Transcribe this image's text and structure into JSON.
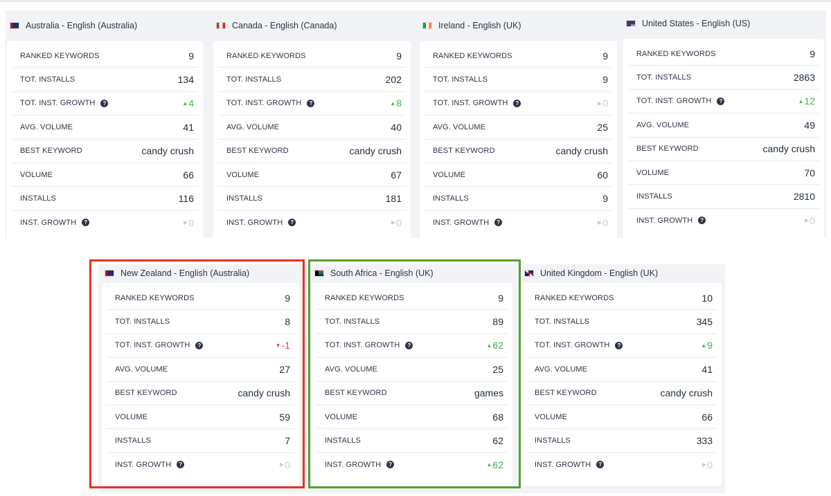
{
  "stat_labels": {
    "ranked_keywords": "RANKED KEYWORDS",
    "tot_installs": "TOT. INSTALLS",
    "tot_inst_growth": "TOT. INST. GROWTH",
    "avg_volume": "AVG. VOLUME",
    "best_keyword": "BEST KEYWORD",
    "volume": "VOLUME",
    "installs": "INSTALLS",
    "inst_growth": "INST. GROWTH",
    "help_glyph": "?"
  },
  "colors": {
    "up": "#3cb34a",
    "down": "#e0443e",
    "neutral": "#c8cdd4",
    "highlight_red": "#e8321f",
    "highlight_green": "#5a9e2f"
  },
  "cards": [
    {
      "title": "Australia - English (Australia)",
      "flag": "australia-flag-icon",
      "ranked_keywords": "9",
      "tot_installs": "134",
      "tot_inst_growth": {
        "arrow": "▲",
        "value": "4",
        "trend": "up"
      },
      "avg_volume": "41",
      "best_keyword": "candy crush",
      "volume": "66",
      "installs": "116",
      "inst_growth": {
        "arrow": "▶",
        "value": "0",
        "trend": "neutral"
      }
    },
    {
      "title": "Canada - English (Canada)",
      "flag": "canada-flag-icon",
      "ranked_keywords": "9",
      "tot_installs": "202",
      "tot_inst_growth": {
        "arrow": "▲",
        "value": "8",
        "trend": "up"
      },
      "avg_volume": "40",
      "best_keyword": "candy crush",
      "volume": "67",
      "installs": "181",
      "inst_growth": {
        "arrow": "▶",
        "value": "0",
        "trend": "neutral"
      }
    },
    {
      "title": "Ireland - English (UK)",
      "flag": "ireland-flag-icon",
      "ranked_keywords": "9",
      "tot_installs": "9",
      "tot_inst_growth": {
        "arrow": "▶",
        "value": "0",
        "trend": "neutral"
      },
      "avg_volume": "25",
      "best_keyword": "candy crush",
      "volume": "60",
      "installs": "9",
      "inst_growth": {
        "arrow": "▶",
        "value": "0",
        "trend": "neutral"
      }
    },
    {
      "title": "United States - English (US)",
      "flag": "united-states-flag-icon",
      "ranked_keywords": "9",
      "tot_installs": "2863",
      "tot_inst_growth": {
        "arrow": "▲",
        "value": "12",
        "trend": "up"
      },
      "avg_volume": "49",
      "best_keyword": "candy crush",
      "volume": "70",
      "installs": "2810",
      "inst_growth": {
        "arrow": "▶",
        "value": "0",
        "trend": "neutral"
      }
    },
    {
      "title": "New Zealand - English (Australia)",
      "flag": "new-zealand-flag-icon",
      "ranked_keywords": "9",
      "tot_installs": "8",
      "tot_inst_growth": {
        "arrow": "▼",
        "value": "-1",
        "trend": "down"
      },
      "avg_volume": "27",
      "best_keyword": "candy crush",
      "volume": "59",
      "installs": "7",
      "inst_growth": {
        "arrow": "▶",
        "value": "0",
        "trend": "neutral"
      }
    },
    {
      "title": "South Africa - English (UK)",
      "flag": "south-africa-flag-icon",
      "ranked_keywords": "9",
      "tot_installs": "89",
      "tot_inst_growth": {
        "arrow": "▲",
        "value": "62",
        "trend": "up"
      },
      "avg_volume": "25",
      "best_keyword": "games",
      "volume": "68",
      "installs": "62",
      "inst_growth": {
        "arrow": "▲",
        "value": "62",
        "trend": "up"
      }
    },
    {
      "title": "United Kingdom - English (UK)",
      "flag": "united-kingdom-flag-icon",
      "ranked_keywords": "10",
      "tot_installs": "345",
      "tot_inst_growth": {
        "arrow": "▲",
        "value": "9",
        "trend": "up"
      },
      "avg_volume": "41",
      "best_keyword": "candy crush",
      "volume": "66",
      "installs": "333",
      "inst_growth": {
        "arrow": "▶",
        "value": "0",
        "trend": "neutral"
      }
    }
  ]
}
